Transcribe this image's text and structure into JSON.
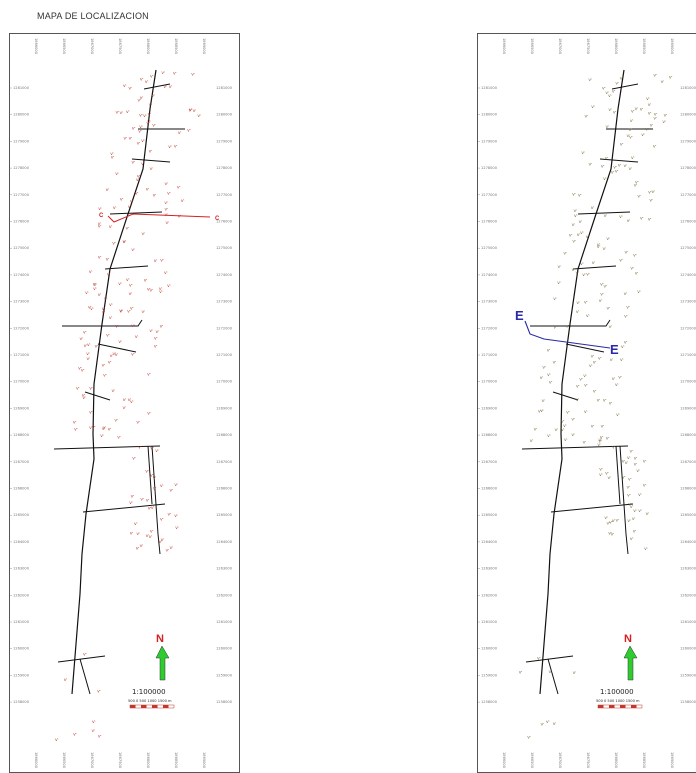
{
  "title": "MAPA DE LOCALIZACION",
  "maps": [
    {
      "northing_labels": [
        "1281000",
        "1280000",
        "1279000",
        "1278000",
        "1277000",
        "1276000",
        "1275000",
        "1274000",
        "1273000",
        "1272000",
        "1271000",
        "1270000",
        "1269000",
        "1268000",
        "1267000",
        "1266000",
        "1265000",
        "1264000",
        "1263000",
        "1262000",
        "1261000",
        "1260000",
        "1259000",
        "1258000"
      ],
      "easting_labels": [
        "1866000",
        "1866500",
        "1867000",
        "1867500",
        "1868000",
        "1868500",
        "1869000"
      ],
      "section_line": {
        "label_start": "C",
        "label_end": "C",
        "color": "#d62020"
      },
      "north_label": "N",
      "scale_text": "1:100000",
      "scale_units": "500  0  500  1000  1500 m"
    },
    {
      "northing_labels": [
        "1281000",
        "1280000",
        "1279000",
        "1278000",
        "1277000",
        "1276000",
        "1275000",
        "1274000",
        "1273000",
        "1272000",
        "1271000",
        "1270000",
        "1269000",
        "1268000",
        "1267000",
        "1266000",
        "1265000",
        "1264000",
        "1263000",
        "1262000",
        "1261000",
        "1260000",
        "1259000",
        "1258000"
      ],
      "easting_labels": [
        "1866000",
        "1866500",
        "1867000",
        "1867500",
        "1868000",
        "1868500",
        "1869000"
      ],
      "section_line": {
        "label_start": "E",
        "label_end": "E",
        "color": "#2a2aa8"
      },
      "north_label": "N",
      "scale_text": "1:100000",
      "scale_units": "500  0  500  1000  1500 m"
    }
  ],
  "colors": {
    "north_arrow": "#2ecc2e",
    "north_letter": "#d42020",
    "symbols_left": "#c0392b",
    "symbols_right": "#7a6a3a",
    "road": "#111111"
  }
}
